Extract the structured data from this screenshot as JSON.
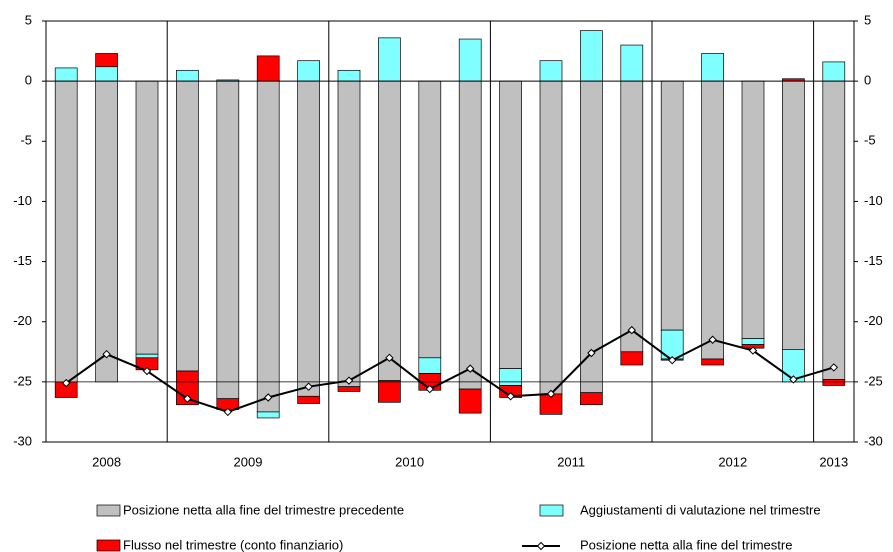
{
  "chart_data": {
    "type": "stacked-bar-line",
    "year_groups": [
      {
        "label": "2008",
        "count": 3
      },
      {
        "label": "2009",
        "count": 4
      },
      {
        "label": "2010",
        "count": 4
      },
      {
        "label": "2011",
        "count": 4
      },
      {
        "label": "2012",
        "count": 4
      },
      {
        "label": "2013",
        "count": 1
      }
    ],
    "series": [
      {
        "name": "Posizione netta alla fine del trimestre precedente",
        "kind": "bar",
        "color": "#c0c0c0",
        "values": [
          -25,
          -25,
          -22.7,
          -24.1,
          -26.4,
          -27.5,
          -26.2,
          -25.4,
          -24.9,
          -23.0,
          -25.6,
          -23.9,
          -26.0,
          -25.9,
          -22.5,
          -20.7,
          -23.1,
          -21.4,
          -22.3,
          -24.8
        ]
      },
      {
        "name": "Aggiustamenti di valutazione nel trimestre",
        "kind": "bar",
        "color": "#7fffff",
        "values": [
          1.1,
          1.2,
          -0.3,
          0.9,
          0.1,
          -0.5,
          1.7,
          0.9,
          3.6,
          -1.3,
          3.5,
          -1.4,
          1.7,
          4.2,
          3.0,
          -2.4,
          2.3,
          -0.5,
          -2.7,
          1.6
        ]
      },
      {
        "name": "Flusso nel trimestre (conto finanziario)",
        "kind": "bar",
        "color": "#ff0000",
        "values": [
          -1.3,
          1.1,
          -1.0,
          -2.8,
          -0.9,
          2.1,
          -0.6,
          -0.4,
          -1.8,
          -1.4,
          -2.0,
          -1.0,
          -1.7,
          -1.0,
          -1.1,
          -0.1,
          -0.5,
          -0.3,
          0.2,
          -0.5
        ]
      },
      {
        "name": "Posizione netta alla fine del trimestre",
        "kind": "line",
        "color": "#000000",
        "values": [
          -25.1,
          -22.7,
          -24.1,
          -26.4,
          -27.5,
          -26.3,
          -25.4,
          -24.9,
          -23.0,
          -25.6,
          -23.9,
          -26.2,
          -26.0,
          -22.6,
          -20.7,
          -23.2,
          -21.5,
          -22.4,
          -24.8,
          -23.8
        ]
      }
    ],
    "ylim": [
      -30,
      5
    ],
    "yticks": [
      -30,
      -25,
      -20,
      -15,
      -10,
      -5,
      0,
      5
    ],
    "y2lim": [
      -30,
      5
    ],
    "y2ticks": [
      -30,
      -25,
      -20,
      -15,
      -10,
      -5,
      0,
      5
    ],
    "hline": -25
  }
}
